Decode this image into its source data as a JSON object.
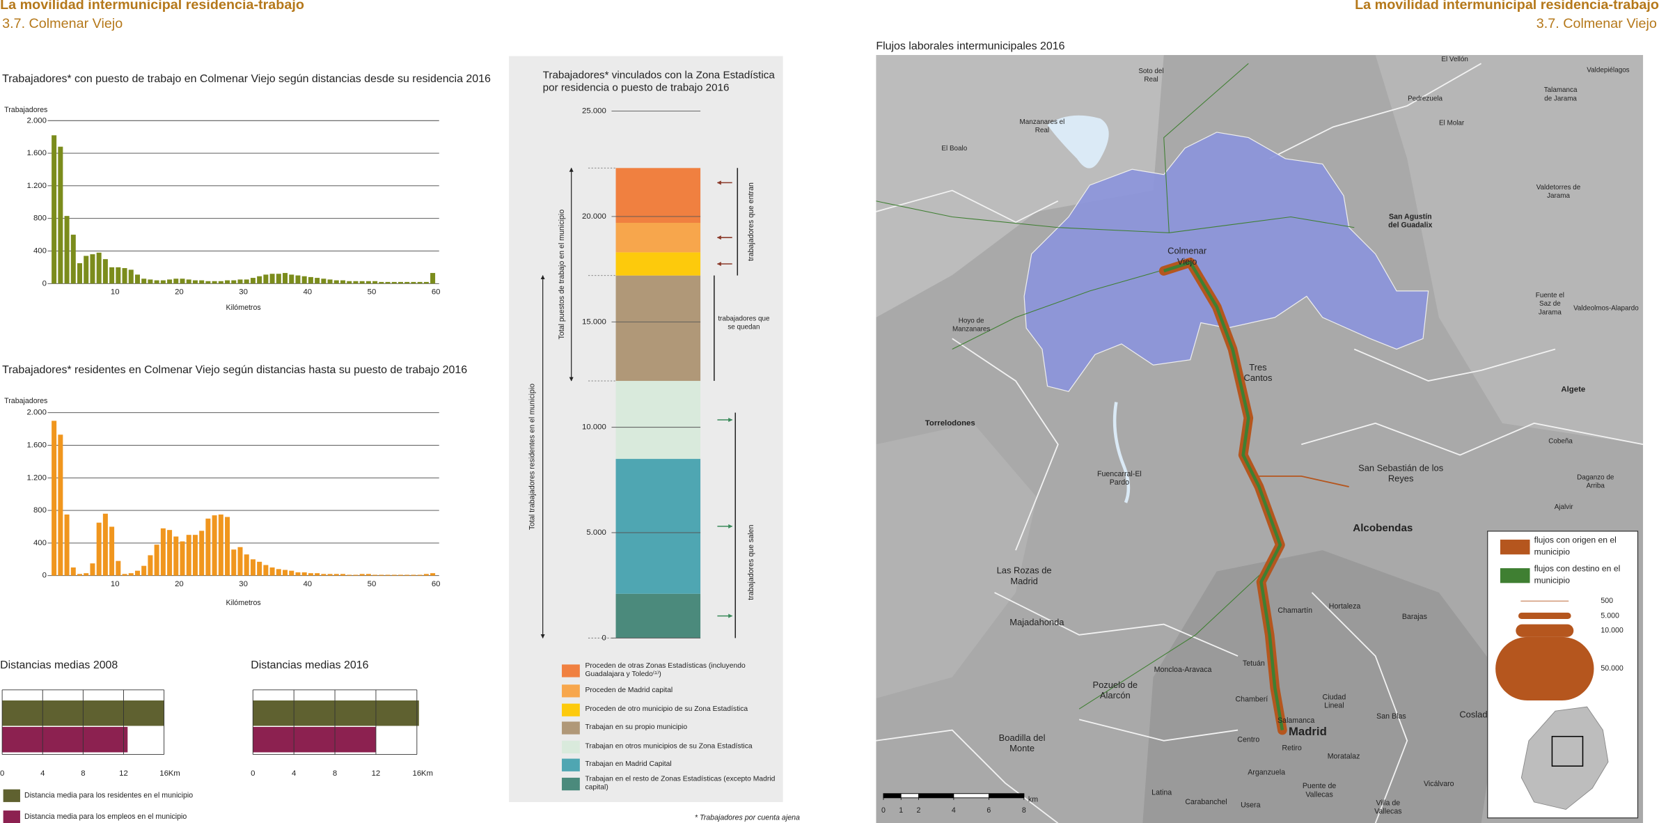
{
  "header": {
    "left": {
      "title": "La movilidad intermunicipal residencia-trabajo",
      "subtitle": "3.7. Colmenar Viejo"
    },
    "right": {
      "title": "La movilidad intermunicipal residencia-trabajo",
      "subtitle": "3.7. Colmenar Viejo"
    }
  },
  "chart_data": [
    {
      "type": "histogram",
      "title": "Trabajadores* con puesto de trabajo en Colmenar Viejo según distancias desde su residencia 2016",
      "y_label": "Trabajadores",
      "x_label": "Kilómetros",
      "color": "#7b8c1c",
      "bins": [
        0,
        1,
        2,
        3,
        4,
        5,
        6,
        7,
        8,
        9,
        10,
        11,
        12,
        13,
        14,
        15,
        16,
        17,
        18,
        19,
        20,
        21,
        22,
        23,
        24,
        25,
        26,
        27,
        28,
        29,
        30,
        31,
        32,
        33,
        34,
        35,
        36,
        37,
        38,
        39,
        40,
        41,
        42,
        43,
        44,
        45,
        46,
        47,
        48,
        49,
        50,
        51,
        52,
        53,
        54,
        55,
        56,
        57,
        58,
        59,
        60
      ],
      "values": [
        1820,
        1680,
        830,
        600,
        250,
        340,
        360,
        380,
        300,
        200,
        200,
        190,
        170,
        110,
        60,
        50,
        40,
        40,
        50,
        60,
        60,
        50,
        40,
        40,
        30,
        30,
        30,
        40,
        40,
        50,
        50,
        70,
        90,
        110,
        120,
        120,
        130,
        110,
        100,
        90,
        80,
        70,
        60,
        50,
        40,
        40,
        30,
        30,
        30,
        30,
        30,
        20,
        20,
        20,
        20,
        20,
        20,
        20,
        20,
        130
      ],
      "xlim": [
        0,
        60
      ],
      "xticks": [
        10,
        20,
        30,
        40,
        50,
        60
      ],
      "ylim": [
        0,
        2000
      ],
      "yticks": [
        0,
        400,
        800,
        {
          "value": 1200,
          "label": "1.200"
        },
        {
          "value": 1600,
          "label": "1.600"
        },
        {
          "value": 2000,
          "label": "2.000"
        }
      ],
      "grid": true
    },
    {
      "type": "histogram",
      "title": "Trabajadores* residentes en Colmenar Viejo según distancias hasta su puesto de trabajo 2016",
      "y_label": "Trabajadores",
      "x_label": "Kilómetros",
      "color": "#f0961e",
      "bins": [
        0,
        1,
        2,
        3,
        4,
        5,
        6,
        7,
        8,
        9,
        10,
        11,
        12,
        13,
        14,
        15,
        16,
        17,
        18,
        19,
        20,
        21,
        22,
        23,
        24,
        25,
        26,
        27,
        28,
        29,
        30,
        31,
        32,
        33,
        34,
        35,
        36,
        37,
        38,
        39,
        40,
        41,
        42,
        43,
        44,
        45,
        46,
        47,
        48,
        49,
        50,
        51,
        52,
        53,
        54,
        55,
        56,
        57,
        58,
        59,
        60
      ],
      "values": [
        1900,
        1730,
        750,
        100,
        20,
        30,
        150,
        650,
        760,
        600,
        180,
        20,
        30,
        60,
        120,
        250,
        380,
        580,
        560,
        480,
        420,
        500,
        500,
        550,
        700,
        740,
        750,
        720,
        320,
        350,
        260,
        200,
        170,
        130,
        100,
        80,
        70,
        60,
        40,
        40,
        30,
        30,
        20,
        20,
        20,
        20,
        10,
        10,
        20,
        20,
        10,
        10,
        10,
        10,
        10,
        10,
        10,
        10,
        20,
        30
      ],
      "xlim": [
        0,
        60
      ],
      "xticks": [
        10,
        20,
        30,
        40,
        50,
        60
      ],
      "ylim": [
        0,
        2000
      ],
      "yticks": [
        0,
        400,
        800,
        {
          "value": 1200,
          "label": "1.200"
        },
        {
          "value": 1600,
          "label": "1.600"
        },
        {
          "value": 2000,
          "label": "2.000"
        }
      ],
      "grid": true
    },
    {
      "type": "hbar",
      "title": "Distancias medias 2008",
      "x_unit": "Km",
      "xlim": [
        0,
        16
      ],
      "xticks": [
        0,
        4,
        8,
        12,
        16
      ],
      "grid": true,
      "series": [
        {
          "name": "Distancia media para los residentes en el municipio",
          "color": "#5f6130",
          "values": [
            16
          ]
        },
        {
          "name": "Distancia media para los empleos en el municipio",
          "color": "#8c2150",
          "values": [
            12.4
          ]
        }
      ]
    },
    {
      "type": "hbar",
      "title": "Distancias medias 2016",
      "x_unit": "Km",
      "xlim": [
        0,
        16
      ],
      "xticks": [
        0,
        4,
        8,
        12,
        16
      ],
      "grid": true,
      "series": [
        {
          "color": "#5f6130",
          "values": [
            16.2
          ]
        },
        {
          "color": "#8c2150",
          "values": [
            12
          ]
        }
      ]
    },
    {
      "type": "stacked_bar",
      "title": "Trabajadores* vinculados con la Zona Estadística por residencia o puesto de trabajo 2016",
      "ylim": [
        0,
        25000
      ],
      "yticks": [
        0,
        {
          "value": 5000,
          "label": "5.000"
        },
        {
          "value": 10000,
          "label": "10.000"
        },
        {
          "value": 15000,
          "label": "15.000"
        },
        {
          "value": 20000,
          "label": "20.000"
        },
        {
          "value": 25000,
          "label": "25.000"
        }
      ],
      "series": [
        {
          "name": "Proceden de otras Zonas Estadísticas (incluyendo Guadalajara y Toledo⁽¹⁾)",
          "color": "#f08040",
          "values": [
            2600
          ]
        },
        {
          "name": "Proceden de Madrid capital",
          "color": "#f7a64c",
          "values": [
            1400
          ]
        },
        {
          "name": "Proceden de otro municipio de su Zona Estadística",
          "color": "#fdca0c",
          "values": [
            1100
          ]
        },
        {
          "name": "Trabajan en su propio municipio",
          "color": "#b09878",
          "values": [
            5000
          ]
        },
        {
          "name": "Trabajan en otros municipios de su Zona Estadística",
          "color": "#d9eadc",
          "values": [
            3700
          ]
        },
        {
          "name": "Trabajan en Madrid Capital",
          "color": "#4fa6b2",
          "values": [
            6400
          ]
        },
        {
          "name": "Trabajan en el resto de Zonas Estadísticas (excepto Madrid capital)",
          "color": "#4b8a7c",
          "values": [
            2100
          ]
        }
      ],
      "annotations": {
        "total_jobs": "Total puestos de trabajo en el municipio",
        "total_residents": "Total trabajadores residentes en el municipio",
        "entering": "trabajadores que entran",
        "staying": "trabajadores que se quedan",
        "leaving": "trabajadores que salen"
      },
      "footnote": "* Trabajadores por cuenta ajena"
    }
  ],
  "map": {
    "title": "Flujos laborales intermunicipales 2016",
    "labels": [
      "Soto del Real",
      "El Vellón",
      "Valdepiélagos",
      "Pedrezuela",
      "Talamanca de Jarama",
      "Manzanares el Real",
      "El Molar",
      "El Boalo",
      "Colmenar Viejo",
      "San Agustín del Guadalix",
      "Valdetorres de Jarama",
      "Hoyo de Manzanares",
      "Fuente el Saz de Jarama",
      "Valdeolmos-Alapardo",
      "Tres Cantos",
      "Torrelodones",
      "Algete",
      "Cobeña",
      "San Sebastián de los Reyes",
      "Fuencarral-El Pardo",
      "Daganzo de Arriba",
      "Ajalvir",
      "Alcobendas",
      "Las Rozas de Madrid",
      "Chamartín",
      "Hortaleza",
      "Barajas",
      "Majadahonda",
      "Moncloa-Aravaca",
      "Tetuán",
      "Pozuelo de Alarcón",
      "Ciudad Lineal",
      "Chamberí",
      "San Blas",
      "Coslada",
      "Salamanca",
      "Madrid",
      "Boadilla del Monte",
      "Centro",
      "Retiro",
      "Moratalaz",
      "Arganzuela",
      "Vicálvaro",
      "Puente de Vallecas",
      "Latina",
      "Carabanchel",
      "Usera",
      "Villa de Vallecas"
    ],
    "legend": {
      "series": [
        {
          "name": "flujos con origen en el municipio",
          "color": "#b5561e"
        },
        {
          "name": "flujos con destino en el municipio",
          "color": "#3f7f32"
        }
      ],
      "sizes": [
        500,
        {
          "value": 5000,
          "label": "5.000"
        },
        {
          "value": 10000,
          "label": "10.000"
        },
        {
          "value": 50000,
          "label": "50.000"
        }
      ]
    },
    "scale_bar": {
      "ticks": [
        0,
        1,
        2,
        4,
        6,
        8
      ],
      "unit": "km"
    }
  }
}
